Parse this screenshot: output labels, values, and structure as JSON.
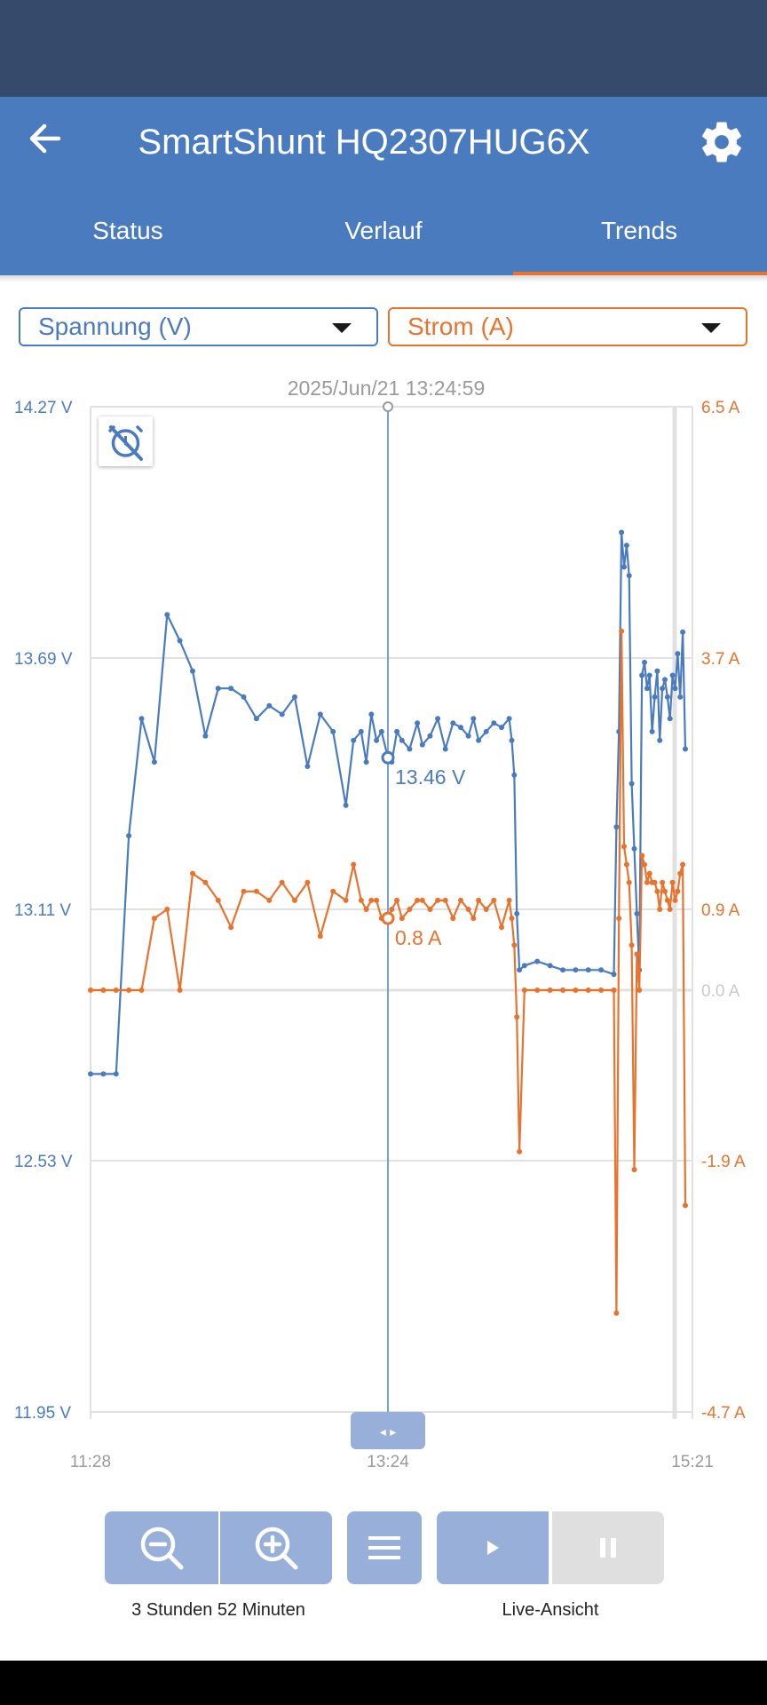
{
  "header": {
    "title": "SmartShunt HQ2307HUG6X",
    "back_icon": "arrow-left-icon",
    "settings_icon": "gear-icon",
    "colors": {
      "status_bar": "#364b6b",
      "app_bar": "#4a7bbf",
      "accent": "#e8732d"
    }
  },
  "tabs": [
    {
      "label": "Status",
      "active": false
    },
    {
      "label": "Verlauf",
      "active": false
    },
    {
      "label": "Trends",
      "active": true
    }
  ],
  "selectors": {
    "left": {
      "value": "Spannung (V)",
      "color": "#4a7bbf"
    },
    "right": {
      "value": "Strom (A)",
      "color": "#e8732d"
    }
  },
  "chart_data": {
    "type": "line",
    "cursor_timestamp": "2025/Jun/21 13:24:59",
    "x_ticks": [
      "11:28",
      "13:24",
      "15:21"
    ],
    "y_left": {
      "unit": "V",
      "ticks": [
        "14.27 V",
        "13.69 V",
        "13.11 V",
        "12.53 V",
        "11.95 V"
      ],
      "range": [
        11.95,
        14.27
      ]
    },
    "y_right": {
      "unit": "A",
      "ticks": [
        "6.5 A",
        "3.7 A",
        "0.9 A",
        "0.0 A",
        "-1.9 A",
        "-4.7 A"
      ],
      "range": [
        -4.7,
        6.5
      ]
    },
    "x_range_minutes": [
      0,
      233
    ],
    "cursor_minute": 116.5,
    "cursor_values": {
      "voltage": "13.46 V",
      "current": "0.8 A"
    },
    "grid": true,
    "series": [
      {
        "key": "voltage",
        "color": "#4a7bbf",
        "axis": "left",
        "x": [
          0,
          5,
          10,
          15,
          20,
          25,
          30,
          35,
          40,
          45,
          50,
          55,
          60,
          65,
          70,
          75,
          80,
          85,
          90,
          95,
          100,
          103,
          106,
          108,
          110,
          112,
          114,
          116.5,
          118,
          120,
          122,
          125,
          128,
          130,
          133,
          136,
          139,
          142,
          145,
          148,
          150,
          152,
          155,
          158,
          161,
          164,
          165,
          166,
          167,
          168,
          170,
          175,
          180,
          185,
          190,
          195,
          200,
          205,
          206,
          207,
          208,
          209,
          210,
          211,
          212,
          213,
          214,
          215,
          216,
          217,
          218,
          219,
          220,
          221,
          222,
          223,
          224,
          225,
          226,
          227,
          228,
          229,
          230,
          231,
          232,
          233
        ],
        "y": [
          12.73,
          12.73,
          12.73,
          13.28,
          13.55,
          13.45,
          13.79,
          13.73,
          13.66,
          13.51,
          13.62,
          13.62,
          13.6,
          13.55,
          13.58,
          13.56,
          13.6,
          13.44,
          13.56,
          13.52,
          13.35,
          13.5,
          13.52,
          13.45,
          13.56,
          13.5,
          13.52,
          13.46,
          13.45,
          13.52,
          13.5,
          13.48,
          13.54,
          13.49,
          13.51,
          13.55,
          13.48,
          13.54,
          13.53,
          13.51,
          13.55,
          13.5,
          13.52,
          13.54,
          13.53,
          13.55,
          13.5,
          13.42,
          13.1,
          12.97,
          12.98,
          12.99,
          12.98,
          12.97,
          12.97,
          12.97,
          12.97,
          12.96,
          13.3,
          13.52,
          13.98,
          13.9,
          13.95,
          13.88,
          13.4,
          13.25,
          13.1,
          12.97,
          13.65,
          13.68,
          13.62,
          13.65,
          13.52,
          13.6,
          13.66,
          13.5,
          13.62,
          13.64,
          13.6,
          13.55,
          13.65,
          13.62,
          13.7,
          13.6,
          13.75,
          13.48
        ]
      },
      {
        "key": "current",
        "color": "#e8732d",
        "axis": "right",
        "x": [
          0,
          5,
          10,
          15,
          20,
          25,
          30,
          35,
          40,
          45,
          50,
          55,
          60,
          65,
          70,
          75,
          80,
          85,
          90,
          95,
          100,
          103,
          106,
          108,
          110,
          112,
          114,
          116.5,
          118,
          120,
          122,
          125,
          128,
          130,
          133,
          136,
          139,
          142,
          145,
          148,
          150,
          152,
          155,
          158,
          161,
          164,
          165,
          166,
          167,
          168,
          170,
          175,
          180,
          185,
          190,
          195,
          200,
          205,
          206,
          207,
          208,
          209,
          210,
          211,
          212,
          213,
          214,
          215,
          216,
          217,
          218,
          219,
          220,
          221,
          222,
          223,
          224,
          225,
          226,
          227,
          228,
          229,
          230,
          231,
          232,
          233
        ],
        "y": [
          0.0,
          0.0,
          0.0,
          0.0,
          0.0,
          0.8,
          0.9,
          0.0,
          1.3,
          1.2,
          1.0,
          0.7,
          1.1,
          1.1,
          1.0,
          1.2,
          1.0,
          1.2,
          0.6,
          1.1,
          1.0,
          1.4,
          1.0,
          0.9,
          1.0,
          1.0,
          0.8,
          0.8,
          0.9,
          1.0,
          0.8,
          0.9,
          1.0,
          1.0,
          0.9,
          1.0,
          1.0,
          0.8,
          1.0,
          0.9,
          0.8,
          1.0,
          0.9,
          1.0,
          0.7,
          1.0,
          0.8,
          0.5,
          -0.3,
          -1.8,
          0.0,
          0.0,
          0.0,
          0.0,
          0.0,
          0.0,
          0.0,
          0.0,
          -3.6,
          0.8,
          4.0,
          1.6,
          1.4,
          1.2,
          0.5,
          -2.0,
          0.4,
          0.0,
          1.5,
          1.4,
          1.2,
          1.3,
          1.2,
          1.2,
          1.1,
          0.9,
          1.2,
          1.1,
          1.0,
          0.9,
          1.2,
          1.0,
          1.1,
          1.3,
          1.4,
          -2.4
        ]
      }
    ]
  },
  "controls": {
    "zoom_out_icon": "zoom-out-icon",
    "zoom_in_icon": "zoom-in-icon",
    "menu_icon": "menu-icon",
    "play_icon": "play-icon",
    "pause_icon": "pause-icon",
    "duration_label": "3 Stunden 52 Minuten",
    "live_label": "Live-Ansicht"
  }
}
